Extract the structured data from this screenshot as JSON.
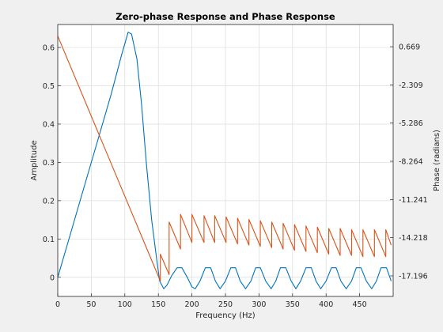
{
  "window": {
    "background": "#f0f0f0"
  },
  "chart_data": {
    "type": "line",
    "title": "Zero-phase Response and Phase Response",
    "xlabel": "Frequency (Hz)",
    "ylabel_left": "Amplitude",
    "ylabel_right": "Phase (radians)",
    "xlim": [
      0,
      500
    ],
    "ylim_left": [
      -0.05,
      0.66
    ],
    "ylim_right": [
      -18.8,
      2.4
    ],
    "x_ticks": [
      0,
      50,
      100,
      150,
      200,
      250,
      300,
      350,
      400,
      450
    ],
    "x_tick_labels": [
      "0",
      "50",
      "100",
      "150",
      "200",
      "250",
      "300",
      "350",
      "400",
      "450"
    ],
    "left_ticks": [
      0,
      0.1,
      0.2,
      0.3,
      0.4,
      0.5,
      0.6
    ],
    "left_tick_labels": [
      "0",
      "0.1",
      "0.2",
      "0.3",
      "0.4",
      "0.5",
      "0.6"
    ],
    "right_ticks": [
      0.669,
      -2.309,
      -5.286,
      -8.264,
      -11.241,
      -14.218,
      -17.196
    ],
    "right_tick_labels": [
      "0.669",
      "-2.309",
      "-5.286",
      "-8.264",
      "-11.241",
      "-14.218",
      "-17.196"
    ],
    "grid": true,
    "series": [
      {
        "axis": "left",
        "color": "#0072bd",
        "x": [
          0,
          20,
          40,
          60,
          80,
          95,
          105,
          110,
          118,
          125,
          132,
          140,
          148,
          152,
          158,
          163,
          170,
          178,
          185,
          193,
          200,
          205,
          212,
          220,
          228,
          235,
          242,
          250,
          258,
          265,
          272,
          280,
          288,
          295,
          302,
          310,
          318,
          325,
          332,
          340,
          348,
          355,
          362,
          370,
          378,
          385,
          392,
          400,
          408,
          415,
          422,
          430,
          438,
          445,
          452,
          460,
          468,
          475,
          482,
          490,
          497
        ],
        "y": [
          0,
          0.12,
          0.24,
          0.36,
          0.48,
          0.58,
          0.64,
          0.635,
          0.57,
          0.45,
          0.3,
          0.15,
          0.04,
          -0.01,
          -0.03,
          -0.02,
          0.005,
          0.025,
          0.025,
          0.0,
          -0.025,
          -0.03,
          -0.01,
          0.025,
          0.025,
          -0.01,
          -0.03,
          -0.01,
          0.025,
          0.025,
          -0.01,
          -0.03,
          -0.01,
          0.025,
          0.025,
          -0.01,
          -0.03,
          -0.01,
          0.025,
          0.025,
          -0.01,
          -0.03,
          -0.01,
          0.025,
          0.025,
          -0.01,
          -0.03,
          -0.01,
          0.025,
          0.025,
          -0.01,
          -0.03,
          -0.01,
          0.025,
          0.025,
          -0.01,
          -0.03,
          -0.01,
          0.025,
          0.025,
          -0.01
        ]
      },
      {
        "axis": "right",
        "color": "#d95319",
        "x": [
          0,
          153,
          153,
          166,
          166,
          183,
          183,
          200,
          200,
          218,
          218,
          234,
          234,
          251,
          251,
          268,
          268,
          285,
          285,
          302,
          302,
          319,
          319,
          336,
          336,
          353,
          353,
          370,
          370,
          387,
          387,
          404,
          404,
          421,
          421,
          438,
          438,
          455,
          455,
          472,
          472,
          489,
          489,
          497
        ],
        "y": [
          1.5,
          -17.6,
          -15.5,
          -17.1,
          -13.0,
          -15.1,
          -12.4,
          -14.6,
          -12.4,
          -14.6,
          -12.5,
          -14.6,
          -12.5,
          -14.6,
          -12.6,
          -14.7,
          -12.7,
          -14.8,
          -12.8,
          -14.9,
          -12.9,
          -15.0,
          -13.0,
          -15.1,
          -13.1,
          -15.2,
          -13.2,
          -15.3,
          -13.3,
          -15.4,
          -13.4,
          -15.5,
          -13.5,
          -15.6,
          -13.5,
          -15.6,
          -13.6,
          -15.7,
          -13.6,
          -15.7,
          -13.6,
          -15.7,
          -13.6,
          -14.8
        ]
      }
    ]
  }
}
